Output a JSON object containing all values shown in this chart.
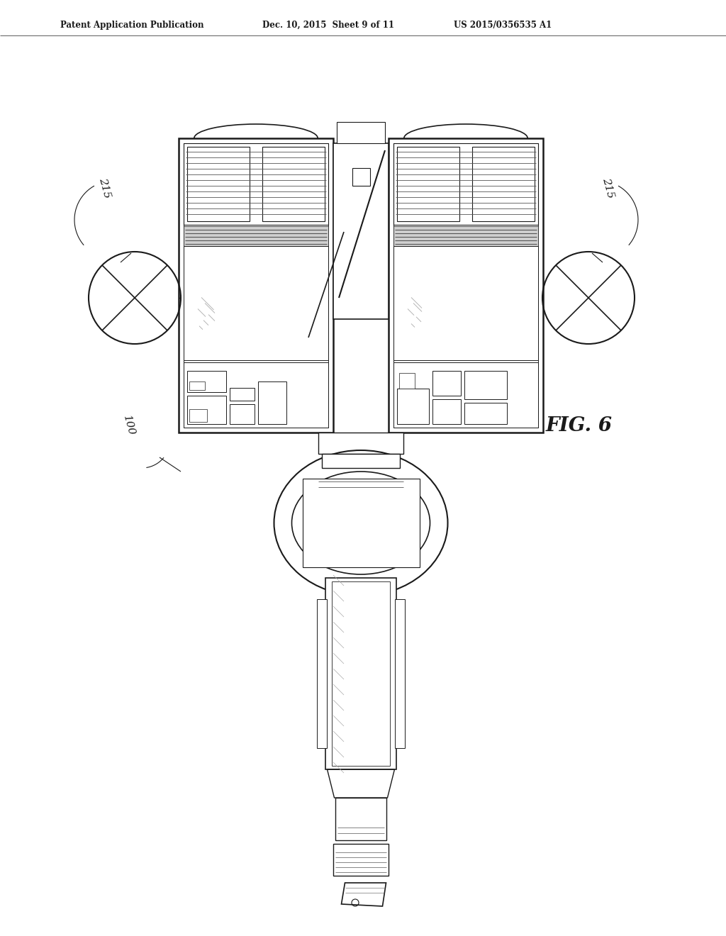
{
  "header_left": "Patent Application Publication",
  "header_mid": "Dec. 10, 2015  Sheet 9 of 11",
  "header_right": "US 2015/0356535 A1",
  "fig_label": "FIG. 6",
  "label_215_left": "215",
  "label_215_right": "215",
  "label_100": "100",
  "bg_color": "#ffffff",
  "line_color": "#1a1a1a",
  "line_color_light": "#555555",
  "line_color_vlight": "#aaaaaa"
}
